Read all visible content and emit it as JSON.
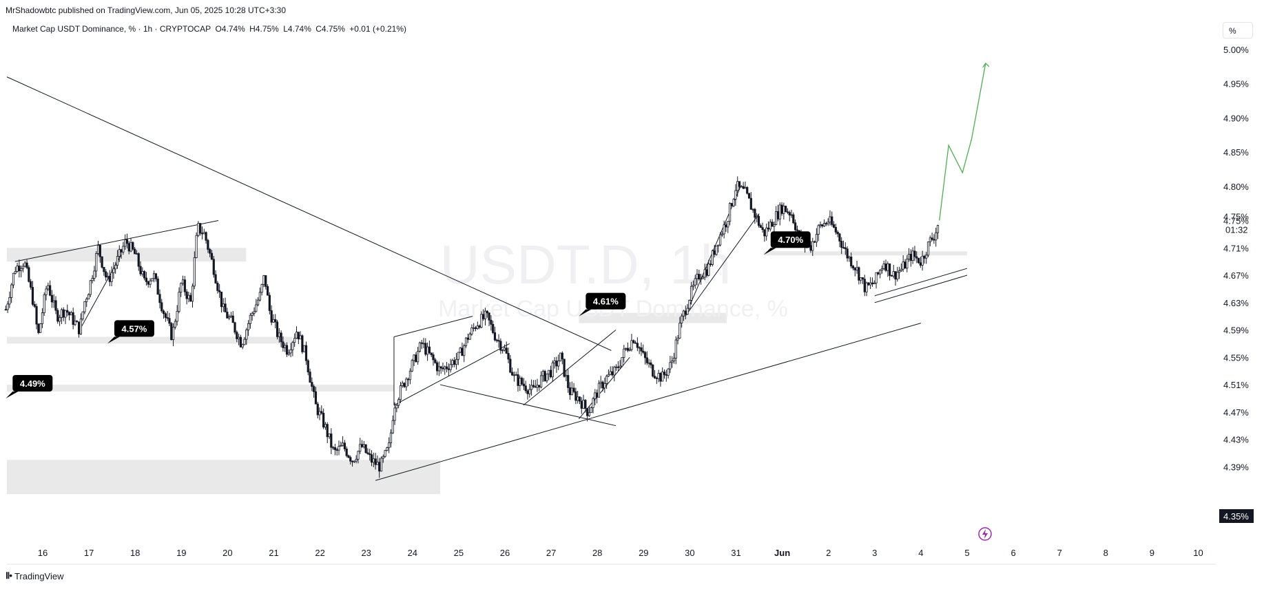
{
  "header": {
    "published": "MrShadowbtc published on TradingView.com, Jun 05, 2025 10:28 UTC+3:30",
    "symbol": "Market Cap USDT Dominance, % · 1h · CRYPTOCAP",
    "open": "O4.74%",
    "high": "H4.75%",
    "low": "L4.74%",
    "close": "C4.75%",
    "change": "+0.01 (+0.21%)"
  },
  "scale_button": "%",
  "watermark": {
    "ticker": "USDT.D, 1h",
    "name": "Market Cap USDT Dominance, %"
  },
  "price_axis": {
    "labels": [
      "5.00%",
      "4.95%",
      "4.90%",
      "4.85%",
      "4.80%",
      "4.75%",
      "4.71%",
      "4.67%",
      "4.63%",
      "4.59%",
      "4.55%",
      "4.51%",
      "4.47%",
      "4.43%",
      "4.39%"
    ],
    "current_price": "4.75%",
    "countdown": "01:32",
    "bottom_badge": "4.35%"
  },
  "time_axis": {
    "labels": [
      "16",
      "17",
      "18",
      "19",
      "20",
      "21",
      "22",
      "23",
      "24",
      "25",
      "26",
      "27",
      "28",
      "29",
      "30",
      "31",
      "Jun",
      "2",
      "3",
      "4",
      "5",
      "6",
      "7",
      "8",
      "9",
      "10"
    ]
  },
  "callouts": [
    {
      "text": "4.57%",
      "price": 4.57,
      "day": 17.4
    },
    {
      "text": "4.49%",
      "price": 4.49,
      "day": 15.2
    },
    {
      "text": "4.61%",
      "price": 4.61,
      "day": 27.6
    },
    {
      "text": "4.70%",
      "price": 4.7,
      "day": 31.6
    }
  ],
  "footer": {
    "brand": "TradingView"
  },
  "colors": {
    "candle": "#131722",
    "projection": "#4caf50",
    "zone": "#e9e9ea",
    "callout_bg": "#000000",
    "event_icon": "#9c27b0"
  },
  "chart_data": {
    "type": "candlestick",
    "title": "Market Cap USDT Dominance, %",
    "interval": "1h",
    "xlabel": "",
    "ylabel": "",
    "y_unit": "%",
    "ylim": [
      4.35,
      5.02
    ],
    "x_range_days": [
      "May 15.2",
      "Jun 10.5"
    ],
    "grid": false,
    "price_path": [
      [
        15.2,
        4.62
      ],
      [
        15.4,
        4.68
      ],
      [
        15.6,
        4.69
      ],
      [
        15.8,
        4.63
      ],
      [
        15.9,
        4.58
      ],
      [
        16.1,
        4.66
      ],
      [
        16.3,
        4.61
      ],
      [
        16.5,
        4.62
      ],
      [
        16.7,
        4.6
      ],
      [
        16.8,
        4.59
      ],
      [
        16.9,
        4.63
      ],
      [
        17.0,
        4.65
      ],
      [
        17.2,
        4.71
      ],
      [
        17.4,
        4.66
      ],
      [
        17.6,
        4.69
      ],
      [
        17.8,
        4.72
      ],
      [
        18.0,
        4.7
      ],
      [
        18.2,
        4.66
      ],
      [
        18.4,
        4.67
      ],
      [
        18.6,
        4.62
      ],
      [
        18.8,
        4.58
      ],
      [
        19.0,
        4.66
      ],
      [
        19.2,
        4.63
      ],
      [
        19.35,
        4.74
      ],
      [
        19.5,
        4.73
      ],
      [
        19.7,
        4.68
      ],
      [
        19.9,
        4.62
      ],
      [
        20.1,
        4.6
      ],
      [
        20.3,
        4.57
      ],
      [
        20.5,
        4.61
      ],
      [
        20.7,
        4.64
      ],
      [
        20.8,
        4.67
      ],
      [
        20.9,
        4.62
      ],
      [
        21.1,
        4.58
      ],
      [
        21.3,
        4.56
      ],
      [
        21.5,
        4.59
      ],
      [
        21.7,
        4.55
      ],
      [
        21.9,
        4.48
      ],
      [
        22.1,
        4.45
      ],
      [
        22.3,
        4.41
      ],
      [
        22.5,
        4.42
      ],
      [
        22.7,
        4.4
      ],
      [
        22.9,
        4.42
      ],
      [
        23.1,
        4.4
      ],
      [
        23.3,
        4.39
      ],
      [
        23.5,
        4.42
      ],
      [
        23.6,
        4.48
      ],
      [
        23.8,
        4.51
      ],
      [
        24.0,
        4.54
      ],
      [
        24.2,
        4.57
      ],
      [
        24.4,
        4.55
      ],
      [
        24.6,
        4.53
      ],
      [
        24.8,
        4.54
      ],
      [
        25.0,
        4.55
      ],
      [
        25.2,
        4.58
      ],
      [
        25.4,
        4.6
      ],
      [
        25.6,
        4.61
      ],
      [
        25.8,
        4.58
      ],
      [
        26.0,
        4.56
      ],
      [
        26.2,
        4.52
      ],
      [
        26.4,
        4.51
      ],
      [
        26.6,
        4.5
      ],
      [
        26.8,
        4.52
      ],
      [
        27.0,
        4.53
      ],
      [
        27.2,
        4.55
      ],
      [
        27.4,
        4.5
      ],
      [
        27.6,
        4.49
      ],
      [
        27.8,
        4.47
      ],
      [
        28.0,
        4.5
      ],
      [
        28.2,
        4.52
      ],
      [
        28.4,
        4.53
      ],
      [
        28.6,
        4.56
      ],
      [
        28.8,
        4.58
      ],
      [
        29.0,
        4.55
      ],
      [
        29.2,
        4.53
      ],
      [
        29.4,
        4.52
      ],
      [
        29.6,
        4.54
      ],
      [
        29.8,
        4.6
      ],
      [
        30.0,
        4.64
      ],
      [
        30.2,
        4.67
      ],
      [
        30.4,
        4.68
      ],
      [
        30.6,
        4.72
      ],
      [
        30.8,
        4.75
      ],
      [
        31.0,
        4.8
      ],
      [
        31.2,
        4.79
      ],
      [
        31.4,
        4.76
      ],
      [
        31.6,
        4.73
      ],
      [
        31.8,
        4.75
      ],
      [
        32.0,
        4.77
      ],
      [
        32.2,
        4.76
      ],
      [
        32.4,
        4.72
      ],
      [
        32.6,
        4.71
      ],
      [
        32.8,
        4.74
      ],
      [
        33.0,
        4.75
      ],
      [
        33.2,
        4.73
      ],
      [
        33.4,
        4.7
      ],
      [
        33.6,
        4.68
      ],
      [
        33.8,
        4.65
      ],
      [
        34.0,
        4.66
      ],
      [
        34.2,
        4.69
      ],
      [
        34.4,
        4.67
      ],
      [
        34.6,
        4.68
      ],
      [
        34.8,
        4.7
      ],
      [
        35.0,
        4.69
      ],
      [
        35.2,
        4.72
      ],
      [
        35.3,
        4.73
      ],
      [
        35.4,
        4.75
      ]
    ],
    "projection": [
      [
        35.4,
        4.75
      ],
      [
        35.6,
        4.86
      ],
      [
        35.9,
        4.82
      ],
      [
        36.1,
        4.87
      ],
      [
        36.4,
        4.98
      ]
    ],
    "horizontal_zones": [
      {
        "price_low": 4.69,
        "price_high": 4.71,
        "from_day": 15.2,
        "to_day": 20.4
      },
      {
        "price_low": 4.57,
        "price_high": 4.58,
        "from_day": 15.2,
        "to_day": 21.4
      },
      {
        "price_low": 4.5,
        "price_high": 4.51,
        "from_day": 15.2,
        "to_day": 23.6
      },
      {
        "price_low": 4.35,
        "price_high": 4.4,
        "from_day": 15.2,
        "to_day": 24.6
      },
      {
        "price_low": 4.6,
        "price_high": 4.615,
        "from_day": 27.6,
        "to_day": 30.8
      },
      {
        "price_low": 4.7,
        "price_high": 4.705,
        "from_day": 31.6,
        "to_day": 36.0
      }
    ],
    "trendlines": [
      [
        [
          15.2,
          4.96
        ],
        [
          28.3,
          4.56
        ]
      ],
      [
        [
          23.2,
          4.37
        ],
        [
          35.0,
          4.6
        ]
      ],
      [
        [
          15.4,
          4.69
        ],
        [
          19.8,
          4.75
        ]
      ],
      [
        [
          16.8,
          4.59
        ],
        [
          17.7,
          4.7
        ]
      ],
      [
        [
          23.6,
          4.58
        ],
        [
          25.3,
          4.61
        ]
      ],
      [
        [
          23.6,
          4.48
        ],
        [
          26.1,
          4.57
        ]
      ],
      [
        [
          23.6,
          4.58
        ],
        [
          23.6,
          4.48
        ]
      ],
      [
        [
          24.6,
          4.51
        ],
        [
          28.4,
          4.45
        ]
      ],
      [
        [
          26.4,
          4.48
        ],
        [
          28.4,
          4.59
        ]
      ],
      [
        [
          27.6,
          4.46
        ],
        [
          28.7,
          4.55
        ]
      ],
      [
        [
          29.9,
          4.61
        ],
        [
          31.1,
          4.8
        ]
      ],
      [
        [
          29.9,
          4.61
        ],
        [
          31.5,
          4.76
        ]
      ],
      [
        [
          34.0,
          4.63
        ],
        [
          36.0,
          4.67
        ]
      ],
      [
        [
          34.0,
          4.64
        ],
        [
          36.0,
          4.68
        ]
      ]
    ]
  }
}
